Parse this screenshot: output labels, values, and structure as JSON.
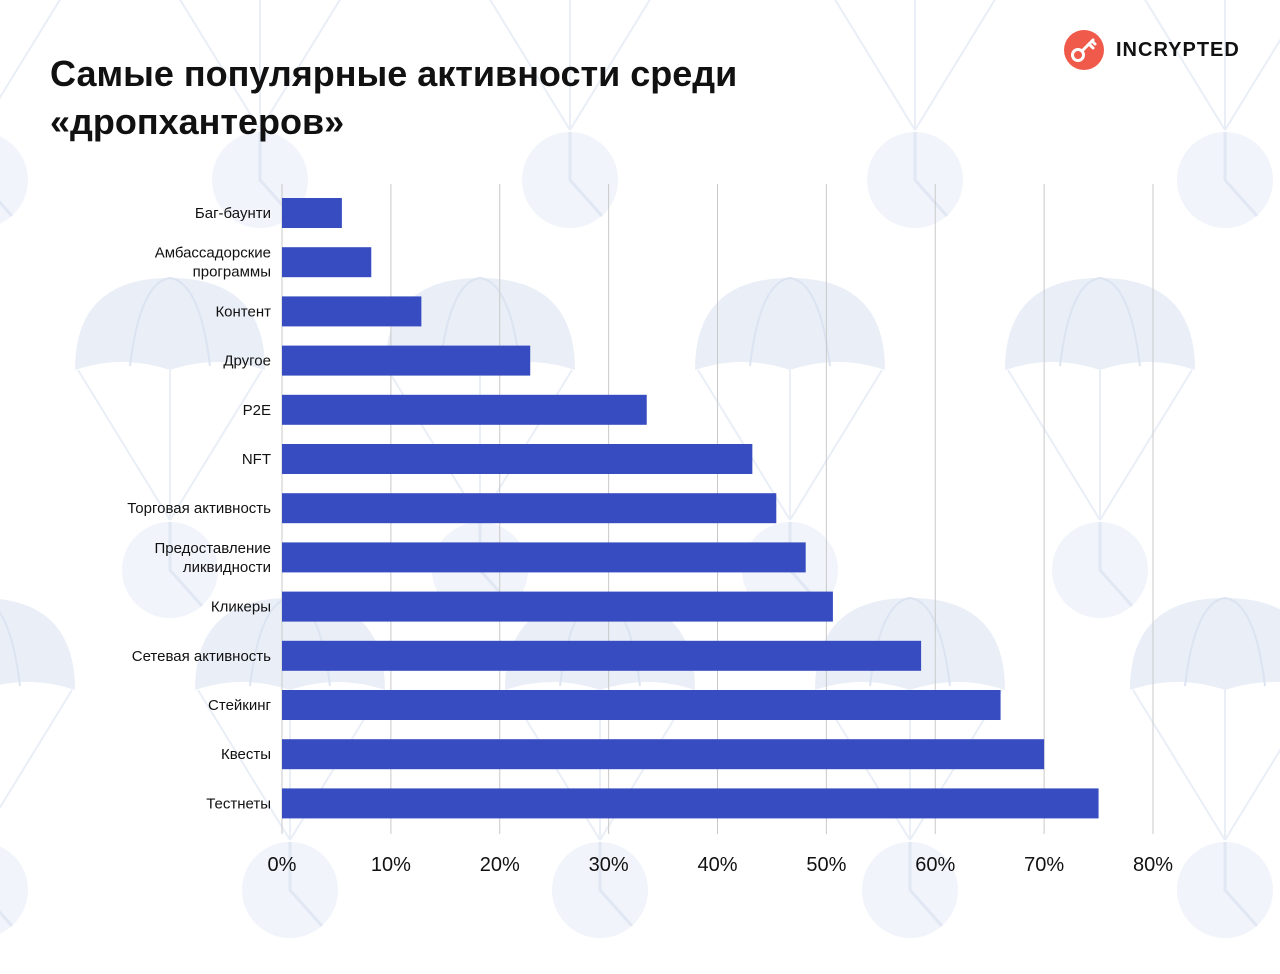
{
  "brand": {
    "name": "INCRYPTED",
    "logo_icon": "key-icon",
    "accent": "#EF5A4A"
  },
  "chart_data": {
    "type": "bar",
    "orientation": "horizontal",
    "title": "Самые популярные активности среди\n«дропхантеров»",
    "bar_color": "#364CC0",
    "grid": true,
    "xlim": [
      0,
      80
    ],
    "x_ticks": [
      0,
      10,
      20,
      30,
      40,
      50,
      60,
      70,
      80
    ],
    "x_tick_labels": [
      "0%",
      "10%",
      "20%",
      "30%",
      "40%",
      "50%",
      "60%",
      "70%",
      "80%"
    ],
    "categories": [
      "Баг-баунти",
      "Амбассадорские\nпрограммы",
      "Контент",
      "Другое",
      "P2E",
      "NFT",
      "Торговая активность",
      "Предоставление\nликвидности",
      "Кликеры",
      "Сетевая активность",
      "Стейкинг",
      "Квесты",
      "Тестнеты"
    ],
    "values": [
      5.5,
      8.2,
      12.8,
      22.8,
      33.5,
      43.2,
      45.4,
      48.1,
      50.6,
      58.7,
      66.0,
      70.0,
      75.0
    ]
  }
}
